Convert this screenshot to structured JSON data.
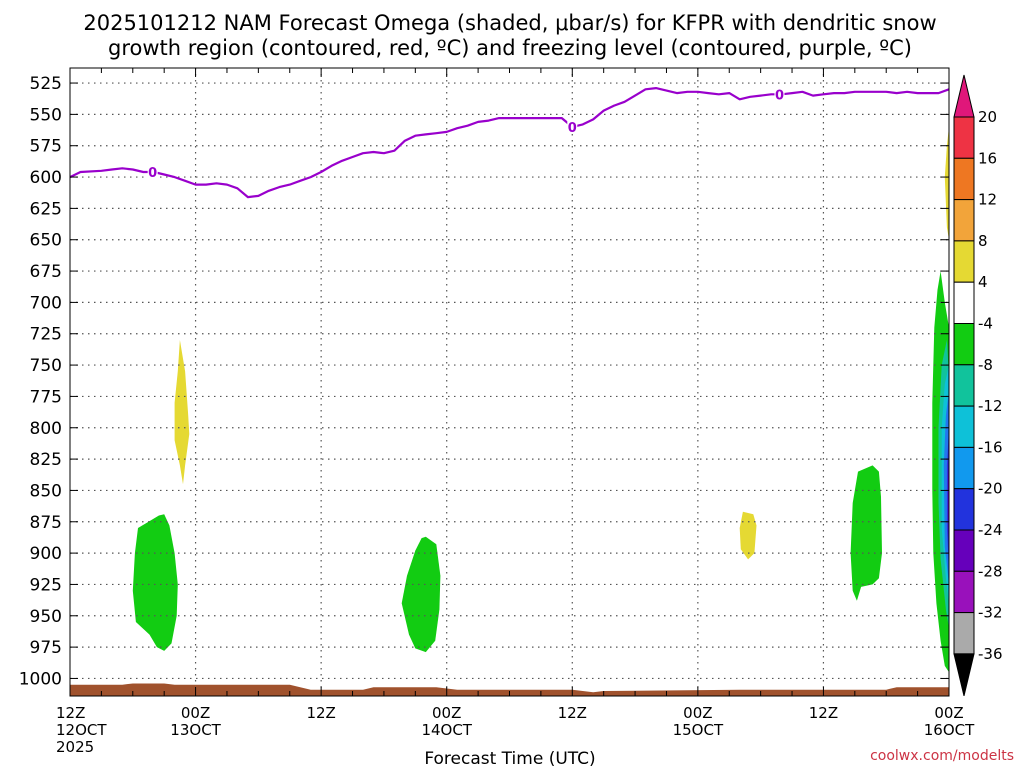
{
  "chart_data": {
    "type": "heatmap",
    "title_line1": "2025101212 NAM Forecast Omega (shaded, μbar/s) for KFPR with dendritic snow",
    "title_line2": "growth region (contoured, red, ºC) and freezing level (contoured, purple, ºC)",
    "xlabel": "Forecast Time (UTC)",
    "ylabel": "",
    "y_units": "hPa",
    "ylim": [
      1014,
      513
    ],
    "y_ticks": [
      "525",
      "550",
      "575",
      "600",
      "625",
      "650",
      "675",
      "700",
      "725",
      "750",
      "775",
      "800",
      "825",
      "850",
      "875",
      "900",
      "925",
      "950",
      "975",
      "1000"
    ],
    "x_range_hours": [
      0,
      84
    ],
    "x_ticks": [
      {
        "hour": 0,
        "line1": "12Z",
        "line2": "12OCT",
        "line3": "2025"
      },
      {
        "hour": 12,
        "line1": "00Z",
        "line2": "13OCT",
        "line3": ""
      },
      {
        "hour": 24,
        "line1": "12Z",
        "line2": "",
        "line3": ""
      },
      {
        "hour": 36,
        "line1": "00Z",
        "line2": "14OCT",
        "line3": ""
      },
      {
        "hour": 48,
        "line1": "12Z",
        "line2": "",
        "line3": ""
      },
      {
        "hour": 60,
        "line1": "00Z",
        "line2": "15OCT",
        "line3": ""
      },
      {
        "hour": 72,
        "line1": "12Z",
        "line2": "",
        "line3": ""
      },
      {
        "hour": 84,
        "line1": "00Z",
        "line2": "16OCT",
        "line3": ""
      }
    ],
    "grid": true,
    "freezing_level": {
      "color": "#9900cc",
      "label": "0",
      "label_hours": [
        7.9,
        48,
        67.8
      ],
      "points": [
        [
          0,
          600
        ],
        [
          1,
          596
        ],
        [
          3,
          595
        ],
        [
          4,
          594
        ],
        [
          5,
          593
        ],
        [
          6,
          594
        ],
        [
          7,
          596
        ],
        [
          8,
          596
        ],
        [
          9,
          598
        ],
        [
          10,
          600
        ],
        [
          11,
          603
        ],
        [
          12,
          606
        ],
        [
          13,
          606
        ],
        [
          14,
          605
        ],
        [
          15,
          606
        ],
        [
          16,
          609
        ],
        [
          17,
          616
        ],
        [
          18,
          615
        ],
        [
          19,
          611
        ],
        [
          20,
          608
        ],
        [
          21,
          606
        ],
        [
          22,
          603
        ],
        [
          23,
          600
        ],
        [
          24,
          596
        ],
        [
          25,
          591
        ],
        [
          26,
          587
        ],
        [
          27,
          584
        ],
        [
          28,
          581
        ],
        [
          29,
          580
        ],
        [
          30,
          581
        ],
        [
          31,
          579
        ],
        [
          32,
          571
        ],
        [
          33,
          567
        ],
        [
          34,
          566
        ],
        [
          35,
          565
        ],
        [
          36,
          564
        ],
        [
          37,
          561
        ],
        [
          38,
          559
        ],
        [
          39,
          556
        ],
        [
          40,
          555
        ],
        [
          41,
          553
        ],
        [
          42,
          553
        ],
        [
          43,
          553
        ],
        [
          44,
          553
        ],
        [
          45,
          553
        ],
        [
          46,
          553
        ],
        [
          47,
          553
        ],
        [
          48,
          560
        ],
        [
          49,
          558
        ],
        [
          50,
          554
        ],
        [
          51,
          547
        ],
        [
          52,
          543
        ],
        [
          53,
          540
        ],
        [
          54,
          535
        ],
        [
          55,
          530
        ],
        [
          56,
          529
        ],
        [
          57,
          531
        ],
        [
          58,
          533
        ],
        [
          59,
          532
        ],
        [
          60,
          532
        ],
        [
          61,
          533
        ],
        [
          62,
          534
        ],
        [
          63,
          533
        ],
        [
          64,
          538
        ],
        [
          65,
          536
        ],
        [
          66,
          535
        ],
        [
          67,
          534
        ],
        [
          68,
          534
        ],
        [
          69,
          533
        ],
        [
          70,
          532
        ],
        [
          71,
          535
        ],
        [
          72,
          534
        ],
        [
          73,
          533
        ],
        [
          74,
          533
        ],
        [
          75,
          532
        ],
        [
          76,
          532
        ],
        [
          77,
          532
        ],
        [
          78,
          532
        ],
        [
          79,
          533
        ],
        [
          80,
          532
        ],
        [
          81,
          533
        ],
        [
          82,
          533
        ],
        [
          83,
          533
        ],
        [
          84,
          530
        ]
      ]
    },
    "omega_regions": [
      {
        "name": "yellow-plume-1",
        "color": "#e5d933",
        "points": [
          [
            10.5,
            730
          ],
          [
            11,
            755
          ],
          [
            11.3,
            790
          ],
          [
            11.4,
            805
          ],
          [
            11,
            830
          ],
          [
            10.8,
            845
          ],
          [
            10.5,
            830
          ],
          [
            10,
            810
          ],
          [
            10,
            780
          ],
          [
            10.3,
            755
          ]
        ]
      },
      {
        "name": "green-cell-1",
        "color": "#12cc12",
        "points": [
          [
            9,
            869
          ],
          [
            9.5,
            878
          ],
          [
            10,
            900
          ],
          [
            10.3,
            925
          ],
          [
            10.2,
            950
          ],
          [
            9.7,
            972
          ],
          [
            9,
            978
          ],
          [
            8.3,
            975
          ],
          [
            7.6,
            965
          ],
          [
            6.3,
            955
          ],
          [
            6,
            930
          ],
          [
            6.2,
            900
          ],
          [
            6.5,
            880
          ],
          [
            7.5,
            875
          ],
          [
            8.5,
            870
          ]
        ]
      },
      {
        "name": "green-cell-2",
        "color": "#12cc12",
        "points": [
          [
            34,
            887
          ],
          [
            35,
            893
          ],
          [
            35.4,
            918
          ],
          [
            35.3,
            945
          ],
          [
            34.9,
            970
          ],
          [
            34,
            979
          ],
          [
            33,
            976
          ],
          [
            32.4,
            965
          ],
          [
            31.7,
            940
          ],
          [
            32.2,
            918
          ],
          [
            33,
            898
          ],
          [
            33.6,
            888
          ]
        ]
      },
      {
        "name": "yellow-cell-2",
        "color": "#e5d933",
        "points": [
          [
            64.3,
            867
          ],
          [
            65.3,
            869
          ],
          [
            65.6,
            878
          ],
          [
            65.4,
            900
          ],
          [
            64.8,
            905
          ],
          [
            64.1,
            897
          ],
          [
            64,
            880
          ]
        ]
      },
      {
        "name": "green-cell-3",
        "color": "#12cc12",
        "points": [
          [
            76.7,
            830
          ],
          [
            77.3,
            835
          ],
          [
            77.5,
            855
          ],
          [
            77.6,
            900
          ],
          [
            77.3,
            920
          ],
          [
            76.7,
            925
          ],
          [
            75.6,
            927
          ],
          [
            75.2,
            938
          ],
          [
            74.8,
            930
          ],
          [
            74.6,
            900
          ],
          [
            74.8,
            860
          ],
          [
            75.3,
            835
          ]
        ]
      },
      {
        "name": "yellow-edge-top",
        "color": "#e5d933",
        "points": [
          [
            84,
            560
          ],
          [
            84,
            650
          ],
          [
            83.8,
            640
          ],
          [
            83.6,
            600
          ],
          [
            83.8,
            575
          ]
        ]
      },
      {
        "name": "green-edge",
        "color": "#12cc12",
        "points": [
          [
            83.2,
            675
          ],
          [
            83.6,
            700
          ],
          [
            84,
            720
          ],
          [
            84,
            995
          ],
          [
            83.6,
            990
          ],
          [
            83.2,
            970
          ],
          [
            82.8,
            940
          ],
          [
            82.5,
            900
          ],
          [
            82.4,
            850
          ],
          [
            82.4,
            780
          ],
          [
            82.6,
            720
          ],
          [
            82.9,
            690
          ]
        ]
      },
      {
        "name": "teal-edge",
        "color": "#11c39c",
        "points": [
          [
            83.8,
            730
          ],
          [
            84,
            760
          ],
          [
            84,
            960
          ],
          [
            83.7,
            945
          ],
          [
            83.2,
            905
          ],
          [
            83,
            860
          ],
          [
            83,
            800
          ],
          [
            83.3,
            750
          ]
        ]
      },
      {
        "name": "cyan-edge",
        "color": "#0ec1d8",
        "points": [
          [
            84,
            750
          ],
          [
            84,
            940
          ],
          [
            83.7,
            920
          ],
          [
            83.3,
            880
          ],
          [
            83.3,
            800
          ],
          [
            83.6,
            765
          ]
        ]
      },
      {
        "name": "blue-edge",
        "color": "#2277ee",
        "points": [
          [
            84,
            770
          ],
          [
            84,
            925
          ],
          [
            83.6,
            895
          ],
          [
            83.5,
            830
          ],
          [
            83.7,
            790
          ]
        ]
      },
      {
        "name": "indigo-edge",
        "color": "#3333dd",
        "points": [
          [
            84,
            800
          ],
          [
            84,
            915
          ],
          [
            83.8,
            880
          ],
          [
            83.8,
            830
          ]
        ]
      },
      {
        "name": "purple-edge",
        "color": "#7700cc",
        "points": [
          [
            84,
            820
          ],
          [
            84,
            905
          ],
          [
            83.9,
            870
          ],
          [
            83.9,
            840
          ]
        ]
      }
    ],
    "terrain": {
      "color": "#a0522d",
      "points": [
        [
          0,
          1005
        ],
        [
          5,
          1005
        ],
        [
          6,
          1004
        ],
        [
          9,
          1004
        ],
        [
          10,
          1005
        ],
        [
          21,
          1005
        ],
        [
          23,
          1009
        ],
        [
          28,
          1009
        ],
        [
          29,
          1007
        ],
        [
          35,
          1007
        ],
        [
          37,
          1009
        ],
        [
          48,
          1009
        ],
        [
          50,
          1011
        ],
        [
          51,
          1010
        ],
        [
          64,
          1009
        ],
        [
          78,
          1009
        ],
        [
          79,
          1007
        ],
        [
          84,
          1007
        ]
      ]
    },
    "colorbar": {
      "labels": [
        "20",
        "16",
        "12",
        "8",
        "4",
        "-4",
        "-8",
        "-12",
        "-16",
        "-20",
        "-24",
        "-28",
        "-32",
        "-36"
      ],
      "top_arrow_color": "#e0177a",
      "bottom_arrow_color": "#000000",
      "segments": [
        "#ee3344",
        "#ee7722",
        "#f2a43a",
        "#e5d933",
        "#ffffff",
        "#12cc12",
        "#11c39c",
        "#0ec1d8",
        "#1199ee",
        "#2233dd",
        "#6600bb",
        "#9911bb",
        "#aaaaaa"
      ]
    },
    "credit": "coolwx.com/modelts"
  }
}
